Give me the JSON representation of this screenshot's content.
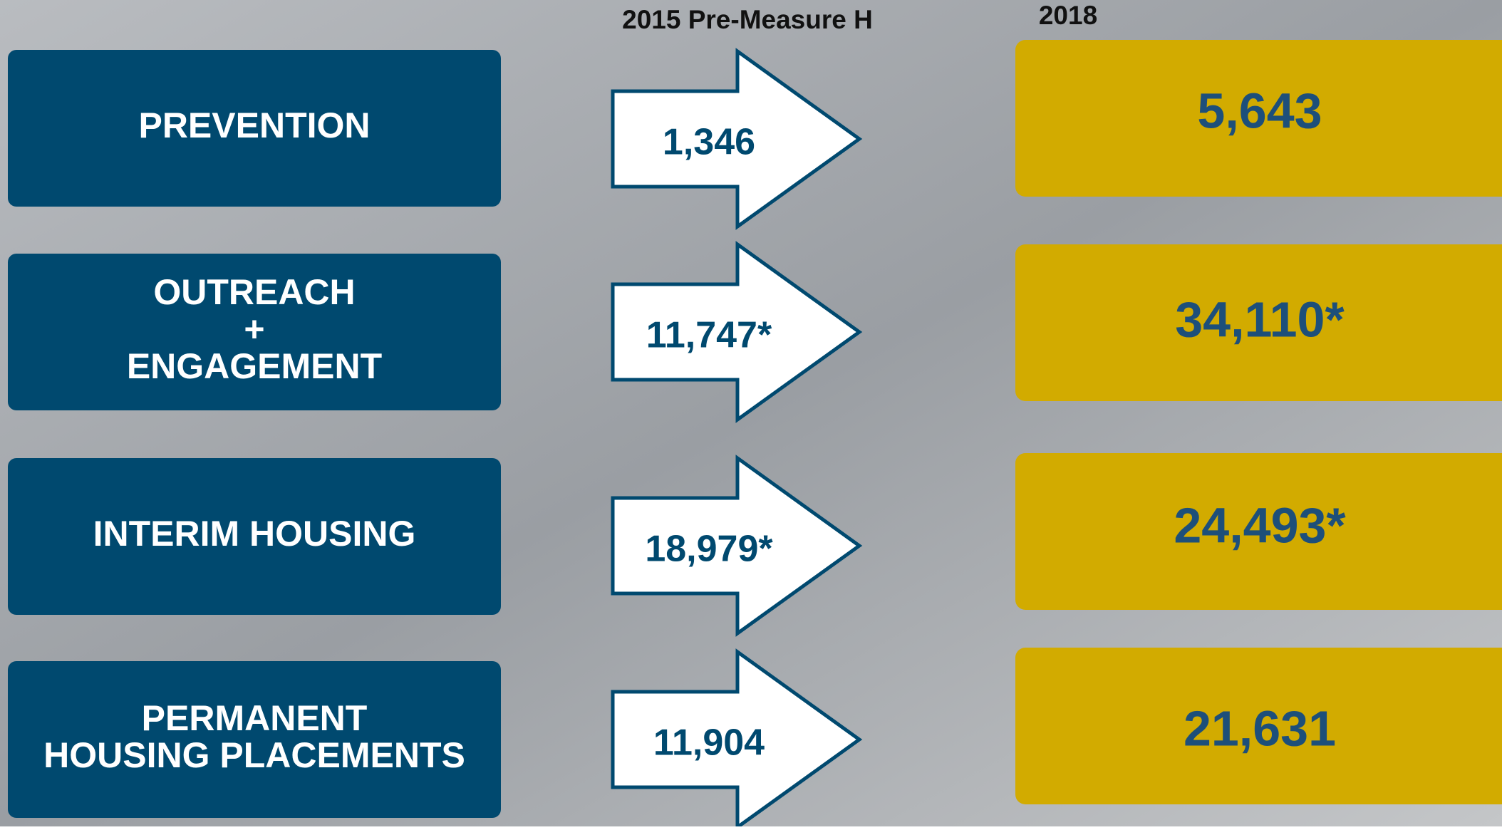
{
  "header": {
    "before": "2015 Pre-Measure H",
    "after": "2018"
  },
  "rows": [
    {
      "label_lines": [
        "PREVENTION"
      ],
      "before": "1,346",
      "after": "5,643"
    },
    {
      "label_lines": [
        "OUTREACH",
        "+",
        "ENGAGEMENT"
      ],
      "before": "11,747*",
      "after": "34,110*"
    },
    {
      "label_lines": [
        "INTERIM HOUSING"
      ],
      "before": "18,979*",
      "after": "24,493*"
    },
    {
      "label_lines": [
        "PERMANENT",
        "HOUSING PLACEMENTS"
      ],
      "before": "11,904",
      "after": "21,631"
    }
  ]
}
